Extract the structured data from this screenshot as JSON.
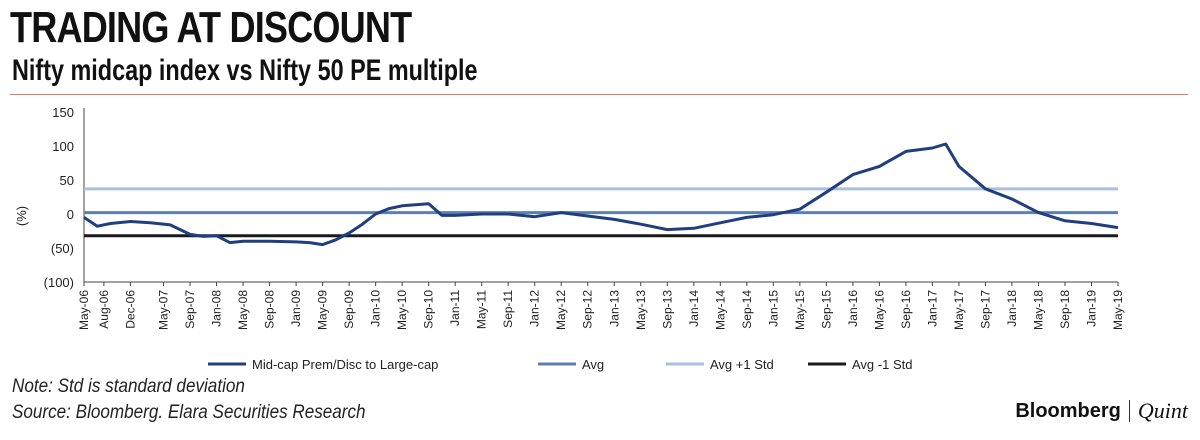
{
  "header": {
    "title": "TRADING AT DISCOUNT",
    "subtitle": "Nifty midcap index vs Nifty 50 PE multiple"
  },
  "footer": {
    "note": "Note: Std is standard deviation",
    "source": "Source: Bloomberg. Elara Securities Research",
    "brand_primary": "Bloomberg",
    "brand_secondary": "Quint"
  },
  "colors": {
    "main_series": "#1f3f7f",
    "avg": "#5f7fb2",
    "avg_plus_std": "#a9bfdc",
    "avg_minus_std": "#1a1a1a",
    "title_rule": "#e07a5f"
  },
  "chart_data": {
    "type": "line",
    "ylabel": "(%)",
    "ylim": [
      -100,
      150
    ],
    "yticks": [
      150,
      100,
      50,
      0,
      -50,
      -100
    ],
    "ytick_labels": [
      "150",
      "100",
      "50",
      "0",
      "(50)",
      "(100)"
    ],
    "xtick_labels": [
      "May-06",
      "Aug-06",
      "Dec-06",
      "May-07",
      "Sep-07",
      "Jan-08",
      "May-08",
      "Sep-08",
      "Jan-09",
      "May-09",
      "Sep-09",
      "Jan-10",
      "May-10",
      "Sep-10",
      "Jan-11",
      "May-11",
      "Sep-11",
      "Jan-12",
      "May-12",
      "Sep-12",
      "Jan-13",
      "May-13",
      "Sep-13",
      "Jan-14",
      "May-14",
      "Sep-14",
      "Jan-15",
      "May-15",
      "Sep-15",
      "Jan-16",
      "May-16",
      "Sep-16",
      "Jan-17",
      "May-17",
      "Sep-17",
      "Jan-18",
      "May-18",
      "Sep-18",
      "Jan-19",
      "May-19"
    ],
    "legend_position": "bottom",
    "series": [
      {
        "name": "Mid-cap Prem/Disc to Large-cap",
        "x": [
          "May-06",
          "Jul-06",
          "Sep-06",
          "Dec-06",
          "Mar-07",
          "Jun-07",
          "Sep-07",
          "Nov-07",
          "Jan-08",
          "Mar-08",
          "May-08",
          "Sep-08",
          "Jan-09",
          "Mar-09",
          "May-09",
          "Jul-09",
          "Sep-09",
          "Nov-09",
          "Jan-10",
          "Mar-10",
          "May-10",
          "Sep-10",
          "Nov-10",
          "Jan-11",
          "May-11",
          "Sep-11",
          "Jan-12",
          "May-12",
          "Sep-12",
          "Jan-13",
          "May-13",
          "Sep-13",
          "Jan-14",
          "May-14",
          "Sep-14",
          "Jan-15",
          "May-15",
          "Sep-15",
          "Jan-16",
          "May-16",
          "Sep-16",
          "Jan-17",
          "Mar-17",
          "May-17",
          "Sep-17",
          "Jan-18",
          "May-18",
          "Sep-18",
          "Jan-19",
          "May-19"
        ],
        "values": [
          -5,
          -18,
          -14,
          -11,
          -13,
          -16,
          -30,
          -33,
          -32,
          -42,
          -40,
          -40,
          -41,
          -42,
          -45,
          -38,
          -28,
          -15,
          0,
          8,
          12,
          15,
          -2,
          -2,
          0,
          0,
          -4,
          2,
          -3,
          -8,
          -15,
          -23,
          -21,
          -13,
          -5,
          -1,
          7,
          32,
          58,
          70,
          92,
          97,
          103,
          70,
          37,
          22,
          2,
          -10,
          -14,
          -20
        ]
      },
      {
        "name": "Avg",
        "value": 2
      },
      {
        "name": "Avg +1 Std",
        "value": 37
      },
      {
        "name": "Avg -1 Std",
        "value": -32
      }
    ]
  }
}
